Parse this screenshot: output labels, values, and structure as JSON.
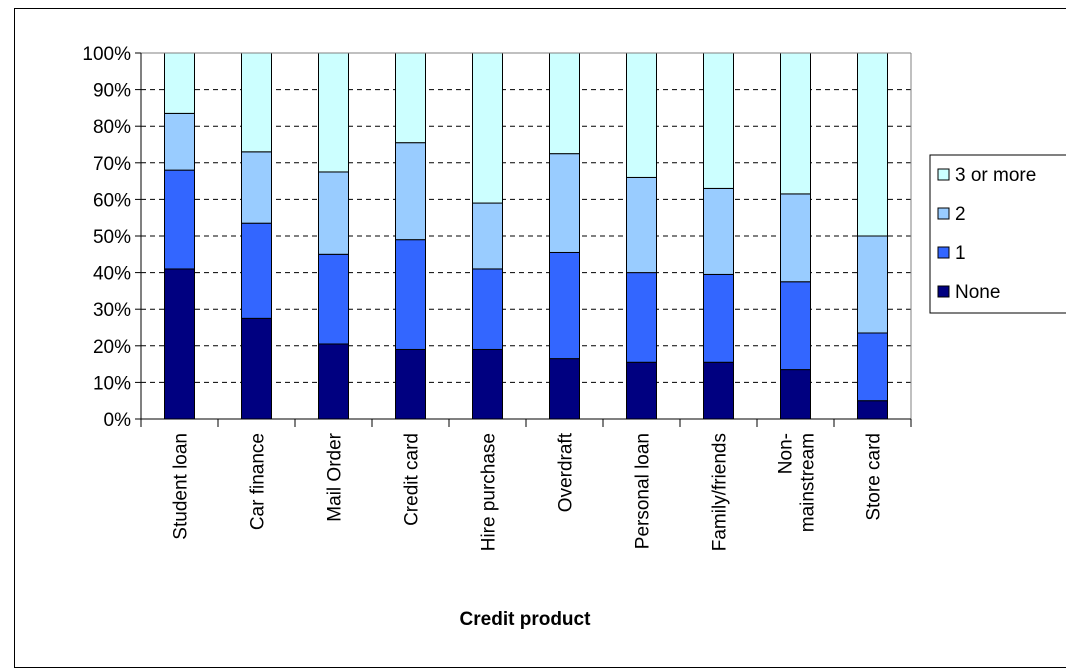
{
  "chart_data": {
    "type": "bar",
    "stacked": true,
    "percent_stacked": true,
    "title": "",
    "xlabel": "Credit product",
    "ylabel": "",
    "ylim": [
      0,
      100
    ],
    "yticks": [
      "0%",
      "10%",
      "20%",
      "30%",
      "40%",
      "50%",
      "60%",
      "70%",
      "80%",
      "90%",
      "100%"
    ],
    "categories": [
      [
        "Student loan"
      ],
      [
        "Car finance"
      ],
      [
        "Mail Order"
      ],
      [
        "Credit card"
      ],
      [
        "Hire purchase"
      ],
      [
        "Overdraft"
      ],
      [
        "Personal loan"
      ],
      [
        "Family/friends"
      ],
      [
        "Non-",
        "mainstream"
      ],
      [
        "Store card"
      ]
    ],
    "series": [
      {
        "name": "None",
        "color": "#000080",
        "values": [
          41,
          27.5,
          20.5,
          19,
          19,
          16.5,
          15.5,
          15.5,
          13.5,
          5
        ]
      },
      {
        "name": "1",
        "color": "#3366ff",
        "values": [
          27,
          26,
          24.5,
          30,
          22,
          29,
          24.5,
          24,
          24,
          18.5
        ]
      },
      {
        "name": "2",
        "color": "#99ccff",
        "values": [
          15.5,
          19.5,
          22.5,
          26.5,
          18,
          27,
          26,
          23.5,
          24,
          26.5
        ]
      },
      {
        "name": "3 or more",
        "color": "#ccffff",
        "values": [
          16.5,
          27,
          32.5,
          24.5,
          41,
          27.5,
          34,
          37,
          38.5,
          50
        ]
      }
    ],
    "grid": true,
    "legend": "right"
  }
}
